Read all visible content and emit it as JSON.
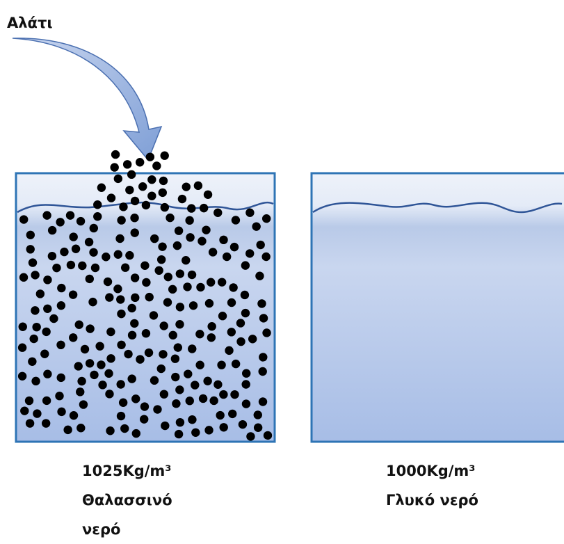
{
  "arrow_label": "Αλάτι",
  "containers": [
    {
      "density": "1025Kg/m³",
      "name": "Θαλασσινό νερό"
    },
    {
      "density": "1000Kg/m³",
      "name": "Γλυκό νερό"
    }
  ]
}
